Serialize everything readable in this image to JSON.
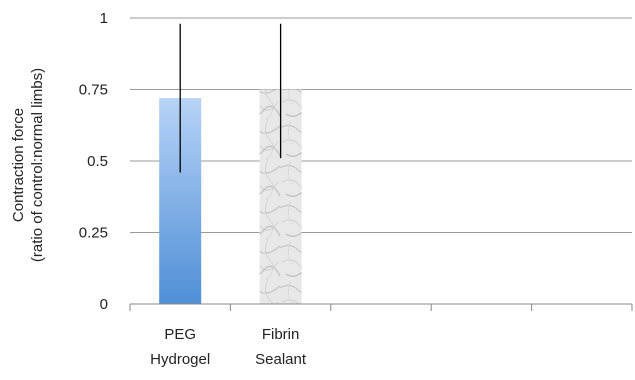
{
  "chart_data": {
    "type": "bar",
    "ylabel_line1": "Contraction force",
    "ylabel_line2": "(ratio of control:normal limbs)",
    "ylim": [
      0,
      1
    ],
    "yticks": [
      {
        "value": 0,
        "label": "0"
      },
      {
        "value": 0.25,
        "label": "0.25"
      },
      {
        "value": 0.5,
        "label": "0.5"
      },
      {
        "value": 0.75,
        "label": "0.75"
      },
      {
        "value": 1,
        "label": "1"
      }
    ],
    "grid": true,
    "category_slots": 5,
    "categories": [
      {
        "line1": "PEG",
        "line2": "Hydrogel"
      },
      {
        "line1": "Fibrin",
        "line2": "Sealant"
      }
    ],
    "values": [
      0.72,
      0.75
    ],
    "error_bars": [
      {
        "low": 0.46,
        "high": 0.98
      },
      {
        "low": 0.51,
        "high": 0.98
      }
    ],
    "bar_fills": [
      "blue-gradient",
      "marble-texture"
    ],
    "colors": {
      "peg_top": "#b7d3f7",
      "peg_bottom": "#4f8fd6",
      "fibrin_base": "#e8e8e8",
      "fibrin_vein": "#bfbfbf",
      "grid": "#9a9a9a",
      "axis": "#888888",
      "error_bar": "#000000"
    }
  }
}
